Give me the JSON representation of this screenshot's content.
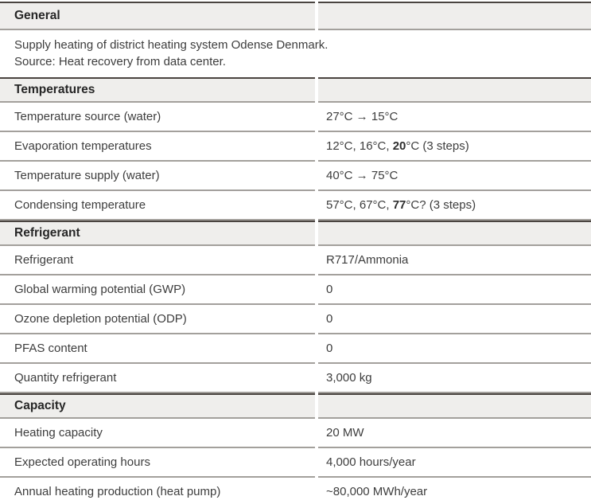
{
  "colors": {
    "header_bg": "#efeeec",
    "dark_line": "#4a4440",
    "gray_line": "#a3a09c",
    "text": "#3d3d3d",
    "header_text": "#262626"
  },
  "table": {
    "sections": [
      {
        "id": "general",
        "title": "General",
        "description_lines": [
          "Supply heating of district heating system Odense Denmark.",
          "Source: Heat recovery from data center."
        ],
        "rows": []
      },
      {
        "id": "temperatures",
        "title": "Temperatures",
        "rows": [
          {
            "label": "Temperature source (water)",
            "value": [
              {
                "text": "27°C → 15°C"
              }
            ]
          },
          {
            "label": "Evaporation temperatures",
            "value": [
              {
                "text": "12°C, 16°C, "
              },
              {
                "text": "20",
                "bold": true
              },
              {
                "text": "°C (3 steps)"
              }
            ]
          },
          {
            "label": "Temperature supply (water)",
            "value": [
              {
                "text": "40°C → 75°C"
              }
            ]
          },
          {
            "label": "Condensing temperature",
            "value": [
              {
                "text": "57°C, 67°C, "
              },
              {
                "text": "77",
                "bold": true
              },
              {
                "text": "°C? (3 steps)"
              }
            ]
          }
        ]
      },
      {
        "id": "refrigerant",
        "title": "Refrigerant",
        "rows": [
          {
            "label": "Refrigerant",
            "value": [
              {
                "text": "R717/Ammonia"
              }
            ]
          },
          {
            "label": "Global warming potential (GWP)",
            "value": [
              {
                "text": "0"
              }
            ]
          },
          {
            "label": "Ozone depletion potential (ODP)",
            "value": [
              {
                "text": "0"
              }
            ]
          },
          {
            "label": "PFAS content",
            "value": [
              {
                "text": "0"
              }
            ]
          },
          {
            "label": "Quantity refrigerant",
            "value": [
              {
                "text": "3,000 kg"
              }
            ]
          }
        ]
      },
      {
        "id": "capacity",
        "title": "Capacity",
        "rows": [
          {
            "label": "Heating capacity",
            "value": [
              {
                "text": "20 MW"
              }
            ]
          },
          {
            "label": "Expected operating hours",
            "value": [
              {
                "text": "4,000 hours/year"
              }
            ]
          },
          {
            "label": "Annual heating production (heat pump)",
            "value": [
              {
                "text": "~80,000 MWh/year"
              }
            ]
          }
        ]
      }
    ]
  }
}
